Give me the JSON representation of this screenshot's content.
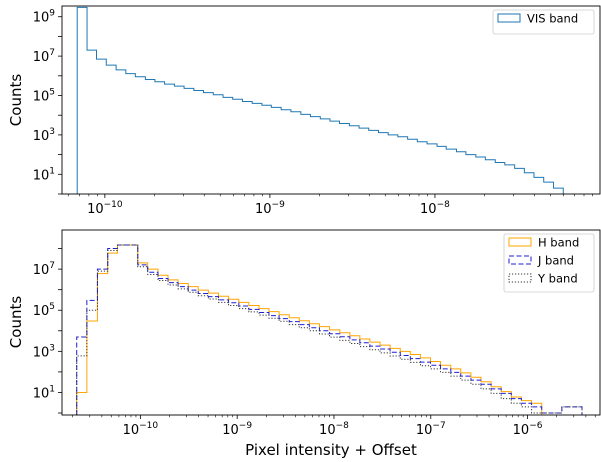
{
  "chart_data": [
    {
      "type": "step-histogram",
      "x_scale": "log",
      "y_scale": "log",
      "xlim": [
        5.5e-11,
        1e-07
      ],
      "ylim": [
        1.0,
        3500000000.0
      ],
      "xlabel": "",
      "ylabel": "Counts",
      "x_ticks": [
        {
          "value": 1e-10,
          "base": "10",
          "exp": "−10"
        },
        {
          "value": 1e-09,
          "base": "10",
          "exp": "−9"
        },
        {
          "value": 1e-08,
          "base": "10",
          "exp": "−8"
        }
      ],
      "y_ticks": [
        {
          "value": 10,
          "base": "10",
          "exp": "1"
        },
        {
          "value": 1000,
          "base": "10",
          "exp": "3"
        },
        {
          "value": 100000,
          "base": "10",
          "exp": "5"
        },
        {
          "value": 10000000,
          "base": "10",
          "exp": "7"
        },
        {
          "value": 1000000000,
          "base": "10",
          "exp": "9"
        }
      ],
      "legend_position": "top-right",
      "series": [
        {
          "name": "VIS band",
          "color": "#1f77b4",
          "style": "solid",
          "edges": [
            6.8e-11,
            7.8e-11,
            8.9e-11,
            1.02e-10,
            1.17e-10,
            1.34e-10,
            1.53e-10,
            1.76e-10,
            2.01e-10,
            2.3e-10,
            2.64e-10,
            3.02e-10,
            3.46e-10,
            3.96e-10,
            4.54e-10,
            5.2e-10,
            5.95e-10,
            6.82e-10,
            7.81e-10,
            8.94e-10,
            1.02e-09,
            1.17e-09,
            1.34e-09,
            1.54e-09,
            1.76e-09,
            2.02e-09,
            2.31e-09,
            2.64e-09,
            3.03e-09,
            3.47e-09,
            3.97e-09,
            4.55e-09,
            5.21e-09,
            5.96e-09,
            6.83e-09,
            7.82e-09,
            8.96e-09,
            1.03e-08,
            1.17e-08,
            1.35e-08,
            1.54e-08,
            1.77e-08,
            2.02e-08,
            2.32e-08,
            2.65e-08,
            3.04e-08,
            3.48e-08,
            3.98e-08,
            4.56e-08,
            5.23e-08,
            5.99e-08
          ],
          "counts": [
            3000000000.0,
            20000000.0,
            7000000.0,
            3500000.0,
            2000000.0,
            1300000.0,
            900000.0,
            650000.0,
            500000.0,
            380000.0,
            300000.0,
            230000.0,
            180000.0,
            140000.0,
            110000.0,
            80000.0,
            65000.0,
            50000.0,
            40000.0,
            32000.0,
            25000.0,
            19000.0,
            15000.0,
            11000.0,
            8500.0,
            6500.0,
            5000.0,
            3800.0,
            2900.0,
            2200.0,
            1700.0,
            1300.0,
            1000.0,
            800.0,
            600.0,
            450.0,
            350.0,
            260.0,
            190.0,
            140.0,
            100.0,
            75,
            55,
            40,
            30,
            20,
            12,
            7,
            4,
            2
          ]
        }
      ]
    },
    {
      "type": "step-histogram",
      "x_scale": "log",
      "y_scale": "log",
      "xlim": [
        1.55e-11,
        5.6e-06
      ],
      "ylim": [
        0.8,
        800000000.0
      ],
      "xlabel": "Pixel intensity + Offset",
      "ylabel": "Counts",
      "x_ticks": [
        {
          "value": 1e-10,
          "base": "10",
          "exp": "−10"
        },
        {
          "value": 1e-09,
          "base": "10",
          "exp": "−9"
        },
        {
          "value": 1e-08,
          "base": "10",
          "exp": "−8"
        },
        {
          "value": 1e-07,
          "base": "10",
          "exp": "−7"
        },
        {
          "value": 1e-06,
          "base": "10",
          "exp": "−6"
        }
      ],
      "y_ticks": [
        {
          "value": 10,
          "base": "10",
          "exp": "1"
        },
        {
          "value": 1000,
          "base": "10",
          "exp": "3"
        },
        {
          "value": 100000,
          "base": "10",
          "exp": "5"
        },
        {
          "value": 10000000,
          "base": "10",
          "exp": "7"
        }
      ],
      "legend_position": "top-right",
      "series": [
        {
          "name": "H band",
          "color": "#ffa500",
          "style": "solid",
          "edges": [
            2.2e-11,
            2.8e-11,
            3.6e-11,
            4.6e-11,
            5.8e-11,
            7.4e-11,
            9.4e-11,
            1.19e-10,
            1.52e-10,
            1.93e-10,
            2.45e-10,
            3.12e-10,
            3.96e-10,
            5.04e-10,
            6.41e-10,
            8.15e-10,
            1.04e-09,
            1.32e-09,
            1.68e-09,
            2.13e-09,
            2.71e-09,
            3.45e-09,
            4.38e-09,
            5.57e-09,
            7.08e-09,
            9e-09,
            1.15e-08,
            1.46e-08,
            1.85e-08,
            2.35e-08,
            2.99e-08,
            3.8e-08,
            4.84e-08,
            6.15e-08,
            7.82e-08,
            9.94e-08,
            1.26e-07,
            1.61e-07,
            2.04e-07,
            2.6e-07,
            3.3e-07,
            4.2e-07,
            5.34e-07,
            6.79e-07,
            8.63e-07,
            1.1e-06,
            1.4e-06
          ],
          "counts": [
            10,
            30000.0,
            6000000.0,
            60000000.0,
            150000000.0,
            150000000.0,
            20000000.0,
            10000000.0,
            5000000.0,
            3000000.0,
            2000000.0,
            1400000.0,
            950000.0,
            680000.0,
            480000.0,
            340000.0,
            240000.0,
            170000.0,
            120000.0,
            85000.0,
            60000.0,
            43000.0,
            31000.0,
            22000.0,
            16000.0,
            11000.0,
            8000.0,
            5700.0,
            4000.0,
            2800.0,
            2000.0,
            1400.0,
            1000.0,
            700.0,
            480.0,
            320.0,
            210.0,
            140.0,
            90,
            55,
            33,
            19,
            11,
            6,
            4,
            3
          ]
        },
        {
          "name": "J band",
          "color": "#1f1fd6",
          "style": "dashed",
          "edges": [
            2.2e-11,
            2.8e-11,
            3.6e-11,
            4.6e-11,
            5.8e-11,
            7.4e-11,
            9.4e-11,
            1.19e-10,
            1.52e-10,
            1.93e-10,
            2.45e-10,
            3.12e-10,
            3.96e-10,
            5.04e-10,
            6.41e-10,
            8.15e-10,
            1.04e-09,
            1.32e-09,
            1.68e-09,
            2.13e-09,
            2.71e-09,
            3.45e-09,
            4.38e-09,
            5.57e-09,
            7.08e-09,
            9e-09,
            1.15e-08,
            1.46e-08,
            1.85e-08,
            2.35e-08,
            2.99e-08,
            3.8e-08,
            4.84e-08,
            6.15e-08,
            7.82e-08,
            9.94e-08,
            1.26e-07,
            1.61e-07,
            2.04e-07,
            2.6e-07,
            3.3e-07,
            4.2e-07,
            5.34e-07,
            6.79e-07,
            8.63e-07,
            1.1e-06,
            1.4e-06,
            1.78e-06,
            2.26e-06,
            2.87e-06,
            3.65e-06
          ],
          "counts": [
            5000.0,
            300000.0,
            10000000.0,
            100000000.0,
            150000000.0,
            150000000.0,
            16000000.0,
            7000000.0,
            3500000.0,
            2200000.0,
            1400000.0,
            950000.0,
            650000.0,
            460000.0,
            320000.0,
            230000.0,
            160000.0,
            110000.0,
            78000.0,
            55000.0,
            39000.0,
            28000.0,
            20000.0,
            14000.0,
            10000.0,
            7200.0,
            5100.0,
            3600.0,
            2600.0,
            1800.0,
            1300.0,
            900.0,
            630.0,
            440.0,
            300.0,
            210.0,
            140.0,
            95,
            62,
            40,
            25,
            15,
            9,
            5,
            3,
            2,
            1,
            1,
            2,
            2
          ]
        },
        {
          "name": "Y band",
          "color": "#333333",
          "style": "dotted",
          "edges": [
            2.2e-11,
            2.8e-11,
            3.6e-11,
            4.6e-11,
            5.8e-11,
            7.4e-11,
            9.4e-11,
            1.19e-10,
            1.52e-10,
            1.93e-10,
            2.45e-10,
            3.12e-10,
            3.96e-10,
            5.04e-10,
            6.41e-10,
            8.15e-10,
            1.04e-09,
            1.32e-09,
            1.68e-09,
            2.13e-09,
            2.71e-09,
            3.45e-09,
            4.38e-09,
            5.57e-09,
            7.08e-09,
            9e-09,
            1.15e-08,
            1.46e-08,
            1.85e-08,
            2.35e-08,
            2.99e-08,
            3.8e-08,
            4.84e-08,
            6.15e-08,
            7.82e-08,
            9.94e-08,
            1.26e-07,
            1.61e-07,
            2.04e-07,
            2.6e-07,
            3.3e-07,
            4.2e-07,
            5.34e-07,
            6.79e-07,
            8.63e-07,
            1.1e-06,
            1.4e-06,
            1.78e-06,
            2.26e-06,
            2.87e-06,
            3.65e-06
          ],
          "counts": [
            600.0,
            100000.0,
            8000000.0,
            80000000.0,
            150000000.0,
            150000000.0,
            13000000.0,
            5500000.0,
            2800000.0,
            1700000.0,
            1100000.0,
            750000.0,
            510000.0,
            350000.0,
            240000.0,
            170000.0,
            120000.0,
            83000.0,
            58000.0,
            41000.0,
            29000.0,
            20000.0,
            14000.0,
            10000.0,
            7000.0,
            4900.0,
            3400.0,
            2400.0,
            1700.0,
            1200.0,
            840.0,
            590.0,
            410.0,
            290.0,
            200.0,
            140.0,
            95,
            62,
            40,
            25,
            15,
            9,
            5,
            3,
            2,
            1,
            1,
            1,
            2,
            2
          ]
        }
      ]
    }
  ]
}
